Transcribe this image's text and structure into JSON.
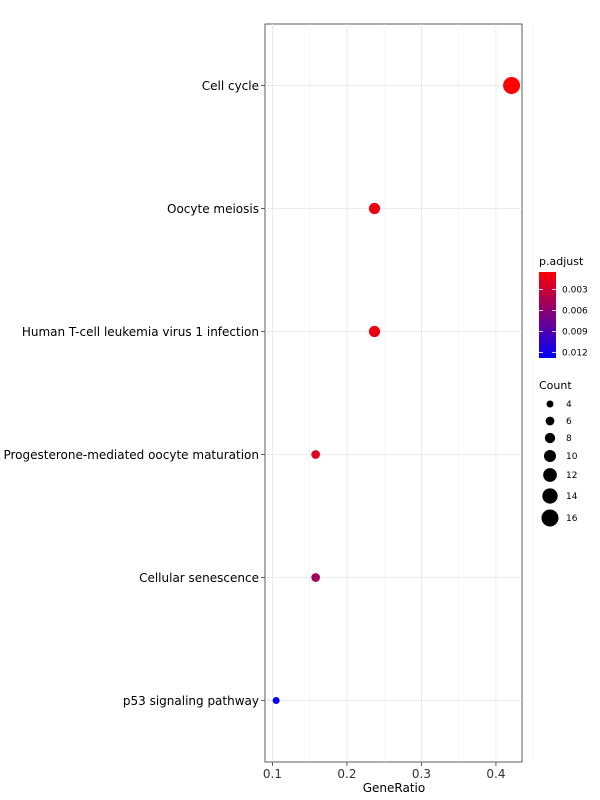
{
  "chart_data": {
    "type": "scatter",
    "xlabel": "GeneRatio",
    "ylabel": "",
    "xlim": [
      0.09,
      0.435
    ],
    "xticks": [
      0.1,
      0.2,
      0.3,
      0.4
    ],
    "xtick_labels": [
      "0.1",
      "0.2",
      "0.3",
      "0.4"
    ],
    "grid": true,
    "categories": [
      "Cell cycle",
      "Oocyte meiosis",
      "Human T-cell leukemia virus 1 infection",
      "Progesterone-mediated oocyte maturation",
      "Cellular senescence",
      "p53 signaling pathway"
    ],
    "points": [
      {
        "term": "Cell cycle",
        "gene_ratio": 0.421,
        "count": 16,
        "p_adjust": 0.0005
      },
      {
        "term": "Oocyte meiosis",
        "gene_ratio": 0.237,
        "count": 9,
        "p_adjust": 0.0012
      },
      {
        "term": "Human T-cell leukemia virus 1 infection",
        "gene_ratio": 0.237,
        "count": 9,
        "p_adjust": 0.0014
      },
      {
        "term": "Progesterone-mediated oocyte maturation",
        "gene_ratio": 0.158,
        "count": 6,
        "p_adjust": 0.002
      },
      {
        "term": "Cellular senescence",
        "gene_ratio": 0.158,
        "count": 6,
        "p_adjust": 0.005
      },
      {
        "term": "p53 signaling pathway",
        "gene_ratio": 0.105,
        "count": 4,
        "p_adjust": 0.0125
      }
    ],
    "color_legend": {
      "title": "p.adjust",
      "high_color": "#ff0000",
      "low_color": "#0000ff",
      "range": [
        0.0005,
        0.0128
      ],
      "ticks": [
        0.003,
        0.006,
        0.009,
        0.012
      ],
      "tick_labels": [
        "0.003",
        "0.006",
        "0.009",
        "0.012"
      ]
    },
    "size_legend": {
      "title": "Count",
      "values": [
        4,
        6,
        8,
        10,
        12,
        14,
        16
      ],
      "labels": [
        "4",
        "6",
        "8",
        "10",
        "12",
        "14",
        "16"
      ]
    }
  }
}
